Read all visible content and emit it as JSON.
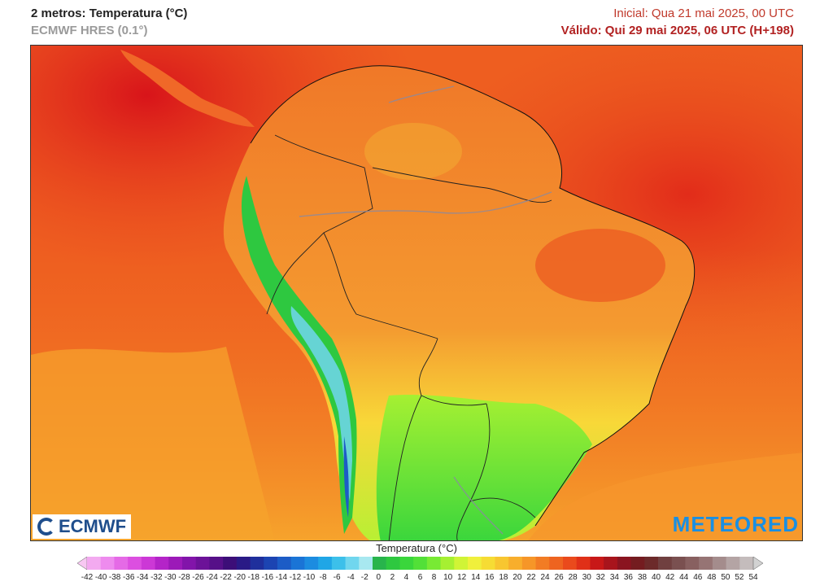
{
  "header": {
    "title": "2 metros: Temperatura (°C)",
    "model": "ECMWF HRES (0.1°)",
    "init": "Inicial: Qua 21 mai 2025, 00 UTC",
    "valid": "Válido: Qui 29 mai 2025, 06 UTC (H+198)"
  },
  "logos": {
    "left": "ECMWF",
    "right": "METEORED"
  },
  "legend": {
    "title": "Temperatura (°C)",
    "ticks": [
      "-42",
      "-40",
      "-38",
      "-36",
      "-34",
      "-32",
      "-30",
      "-28",
      "-26",
      "-24",
      "-22",
      "-20",
      "-18",
      "-16",
      "-14",
      "-12",
      "-10",
      "-8",
      "-6",
      "-4",
      "-2",
      "0",
      "2",
      "4",
      "6",
      "8",
      "10",
      "12",
      "14",
      "16",
      "18",
      "20",
      "22",
      "24",
      "26",
      "28",
      "30",
      "32",
      "34",
      "36",
      "38",
      "40",
      "42",
      "44",
      "46",
      "48",
      "50",
      "52",
      "54"
    ],
    "colors": [
      "#f7c8f2",
      "#f3aaf0",
      "#ee8bee",
      "#e56ae6",
      "#dc4fe0",
      "#cc38d6",
      "#b424c8",
      "#9c1ab8",
      "#8214aa",
      "#6c1298",
      "#561088",
      "#3c0e78",
      "#2a1a86",
      "#1f2f9c",
      "#1c44b2",
      "#1c5cc6",
      "#1a74d6",
      "#1c8ce0",
      "#20a6e6",
      "#3cc0ea",
      "#70d6ee",
      "#a8e8f0",
      "#28b44c",
      "#2ec840",
      "#3ad63c",
      "#52e038",
      "#78ea34",
      "#a6f032",
      "#d0f436",
      "#f0f03c",
      "#f6dc34",
      "#f8c630",
      "#f8ae2c",
      "#f69628",
      "#f27c24",
      "#ee6420",
      "#ea4a1c",
      "#e03018",
      "#c81818",
      "#a8141c",
      "#8a1420",
      "#741c20",
      "#6c2a2a",
      "#704040",
      "#7a5050",
      "#886060",
      "#967474",
      "#a48c8c",
      "#b4a4a4",
      "#c4bcbc",
      "#d2d2d2"
    ]
  }
}
